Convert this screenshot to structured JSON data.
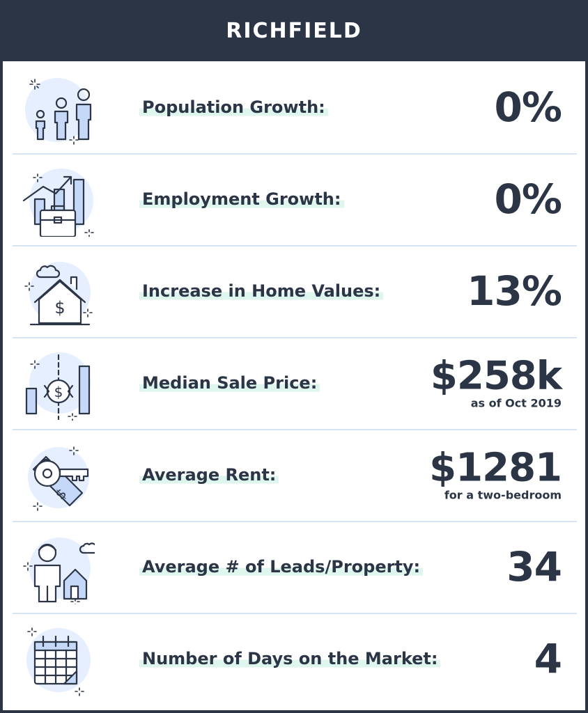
{
  "header": {
    "title": "RICHFIELD"
  },
  "rows": [
    {
      "label": "Population Growth:",
      "value": "0%",
      "note": "",
      "icon": "people-icon"
    },
    {
      "label": "Employment Growth:",
      "value": "0%",
      "note": "",
      "icon": "briefcase-growth-icon"
    },
    {
      "label": "Increase in Home Values:",
      "value": "13%",
      "note": "",
      "icon": "house-dollar-icon"
    },
    {
      "label": "Median Sale Price:",
      "value": "$258k",
      "note": "as of Oct 2019",
      "icon": "price-chart-icon"
    },
    {
      "label": "Average Rent:",
      "value": "$1281",
      "note": "for a two-bedroom",
      "icon": "key-tag-icon"
    },
    {
      "label": "Average # of Leads/Property:",
      "value": "34",
      "note": "",
      "icon": "person-house-icon"
    },
    {
      "label": "Number of Days on the Market:",
      "value": "4",
      "note": "",
      "icon": "calendar-icon"
    }
  ],
  "colors": {
    "dark": "#2b3545",
    "accent_fill": "#c5d8f7",
    "highlight": "#dff6ee",
    "divider": "#d6e3f5"
  }
}
